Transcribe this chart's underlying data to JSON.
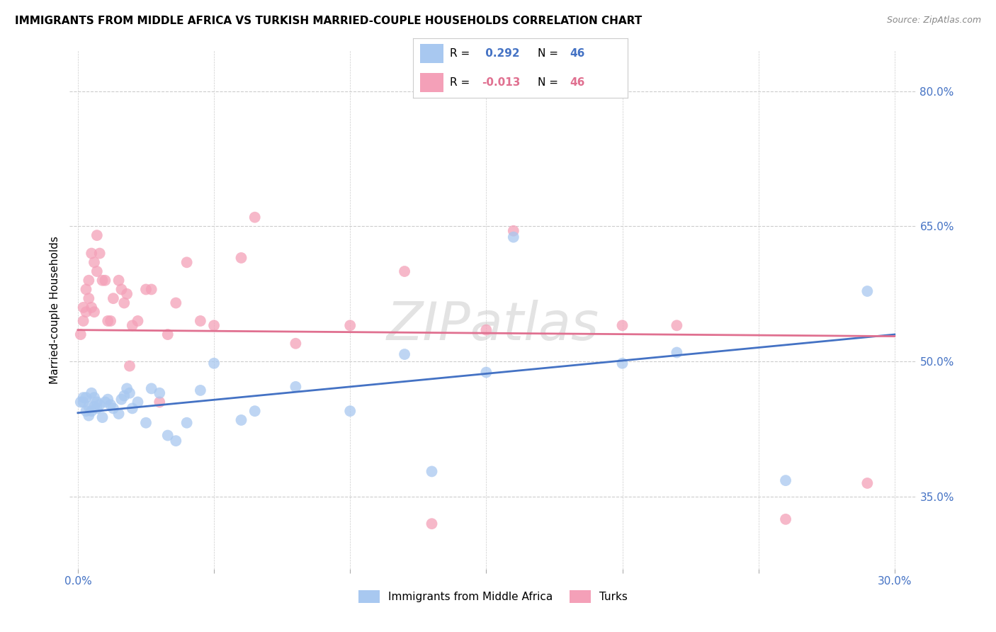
{
  "title": "IMMIGRANTS FROM MIDDLE AFRICA VS TURKISH MARRIED-COUPLE HOUSEHOLDS CORRELATION CHART",
  "source": "Source: ZipAtlas.com",
  "ylabel": "Married-couple Households",
  "legend_label_blue": "Immigrants from Middle Africa",
  "legend_label_pink": "Turks",
  "R_blue": 0.292,
  "R_pink": -0.013,
  "N_blue": 46,
  "N_pink": 46,
  "color_blue": "#A8C8F0",
  "color_pink": "#F4A0B8",
  "color_blue_line": "#4472C4",
  "color_pink_line": "#E07090",
  "color_blue_text": "#4472C4",
  "color_pink_text": "#E07090",
  "watermark": "ZIPatlas",
  "background_color": "#FFFFFF",
  "grid_color": "#CCCCCC",
  "blue_x": [
    0.001,
    0.002,
    0.002,
    0.003,
    0.003,
    0.004,
    0.004,
    0.005,
    0.005,
    0.006,
    0.006,
    0.007,
    0.007,
    0.008,
    0.009,
    0.01,
    0.011,
    0.012,
    0.013,
    0.015,
    0.016,
    0.017,
    0.018,
    0.019,
    0.02,
    0.022,
    0.025,
    0.027,
    0.03,
    0.033,
    0.036,
    0.04,
    0.045,
    0.05,
    0.06,
    0.065,
    0.08,
    0.1,
    0.12,
    0.13,
    0.15,
    0.16,
    0.2,
    0.22,
    0.26,
    0.29
  ],
  "blue_y": [
    0.455,
    0.46,
    0.455,
    0.46,
    0.445,
    0.45,
    0.44,
    0.445,
    0.465,
    0.46,
    0.45,
    0.455,
    0.448,
    0.452,
    0.438,
    0.455,
    0.458,
    0.452,
    0.448,
    0.442,
    0.458,
    0.462,
    0.47,
    0.465,
    0.448,
    0.455,
    0.432,
    0.47,
    0.465,
    0.418,
    0.412,
    0.432,
    0.468,
    0.498,
    0.435,
    0.445,
    0.472,
    0.445,
    0.508,
    0.378,
    0.488,
    0.638,
    0.498,
    0.51,
    0.368,
    0.578
  ],
  "pink_x": [
    0.001,
    0.002,
    0.002,
    0.003,
    0.003,
    0.004,
    0.004,
    0.005,
    0.005,
    0.006,
    0.006,
    0.007,
    0.007,
    0.008,
    0.009,
    0.01,
    0.011,
    0.012,
    0.013,
    0.015,
    0.016,
    0.017,
    0.018,
    0.019,
    0.02,
    0.022,
    0.025,
    0.027,
    0.03,
    0.033,
    0.036,
    0.04,
    0.045,
    0.05,
    0.06,
    0.065,
    0.08,
    0.1,
    0.12,
    0.13,
    0.15,
    0.16,
    0.2,
    0.22,
    0.26,
    0.29
  ],
  "pink_y": [
    0.53,
    0.545,
    0.56,
    0.58,
    0.555,
    0.57,
    0.59,
    0.62,
    0.56,
    0.61,
    0.555,
    0.64,
    0.6,
    0.62,
    0.59,
    0.59,
    0.545,
    0.545,
    0.57,
    0.59,
    0.58,
    0.565,
    0.575,
    0.495,
    0.54,
    0.545,
    0.58,
    0.58,
    0.455,
    0.53,
    0.565,
    0.61,
    0.545,
    0.54,
    0.615,
    0.66,
    0.52,
    0.54,
    0.6,
    0.32,
    0.535,
    0.645,
    0.54,
    0.54,
    0.325,
    0.365
  ],
  "yticks_right": [
    0.8,
    0.65,
    0.5,
    0.35
  ],
  "ytick_labels_right": [
    "80.0%",
    "65.0%",
    "50.0%",
    "35.0%"
  ],
  "xtick_positions": [
    0.0,
    0.05,
    0.1,
    0.15,
    0.2,
    0.25,
    0.3
  ],
  "xtick_labels": [
    "0.0%",
    "",
    "",
    "",
    "",
    "",
    "30.0%"
  ],
  "xlim": [
    -0.003,
    0.308
  ],
  "ylim": [
    0.27,
    0.845
  ]
}
